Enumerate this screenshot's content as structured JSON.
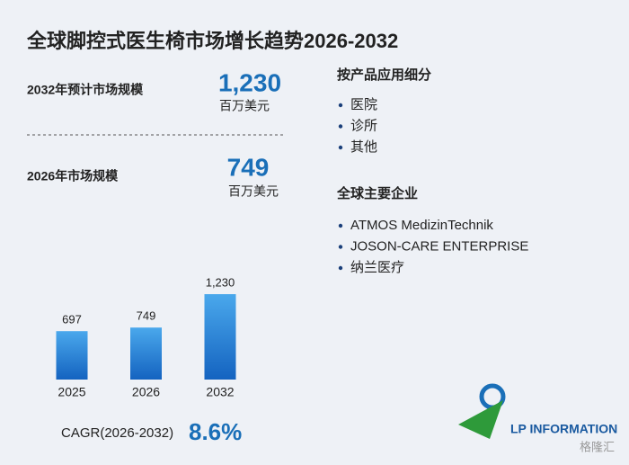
{
  "title": "全球脚控式医生椅市场增长趋势2026-2032",
  "forecast": {
    "label": "2032年预计市场规模",
    "value": "1,230",
    "unit": "百万美元"
  },
  "current": {
    "label": "2026年市场规模",
    "value": "749",
    "unit": "百万美元"
  },
  "segments": {
    "heading": "按产品应用细分",
    "items": [
      "医院",
      "诊所",
      "其他"
    ]
  },
  "companies": {
    "heading": "全球主要企业",
    "items": [
      "ATMOS MedizinTechnik",
      "JOSON-CARE ENTERPRISE",
      "纳兰医疗"
    ]
  },
  "cagr": {
    "label": "CAGR(2026-2032)",
    "value": "8.6%"
  },
  "logo": "LP INFORMATION",
  "watermark": "格隆汇",
  "chart_data": {
    "type": "bar",
    "categories": [
      "2025",
      "2026",
      "2032"
    ],
    "values": [
      697,
      749,
      1230
    ],
    "value_labels": [
      "697",
      "749",
      "1,230"
    ],
    "color": "#1f7fd6"
  }
}
